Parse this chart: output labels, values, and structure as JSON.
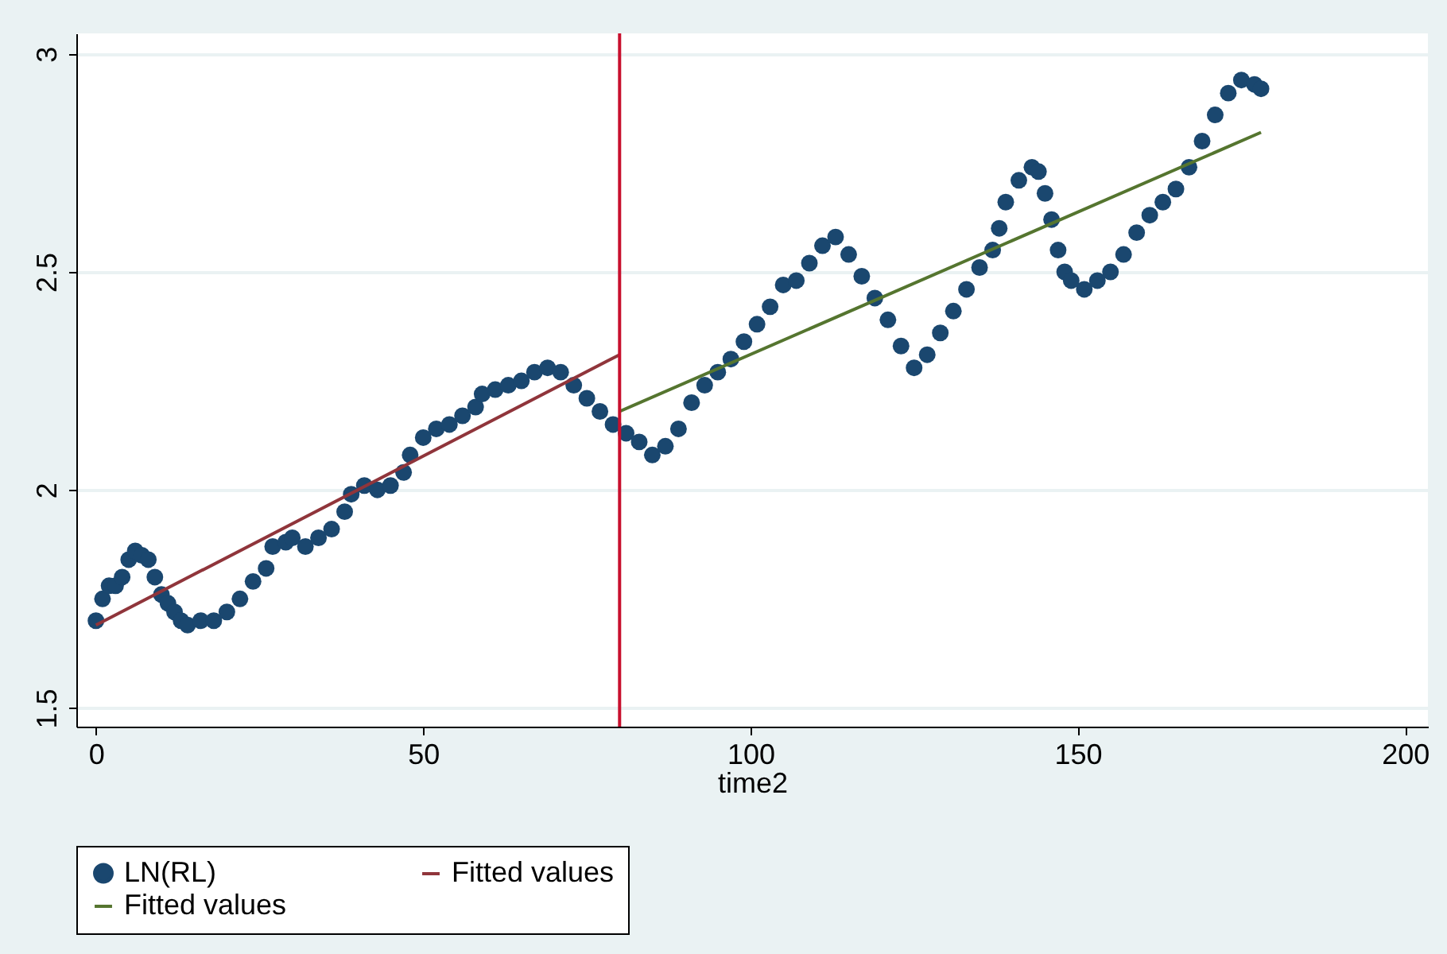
{
  "chart_data": {
    "type": "scatter",
    "xlabel": "time2",
    "xlim": [
      -3,
      203.5
    ],
    "ylim": [
      1.457,
      3.047
    ],
    "xticks": [
      0,
      50,
      100,
      150,
      200
    ],
    "yticks": [
      1.5,
      2,
      2.5,
      3
    ],
    "grid": "y",
    "legend": "bottom",
    "ref_lines": [
      {
        "axis": "x",
        "value": 80,
        "color": "#c8102e",
        "line_style": "solid"
      }
    ],
    "series": [
      {
        "name": "LN(RL)",
        "marker": "circle",
        "color": "#1a476f",
        "x": [
          0,
          1,
          2,
          3,
          4,
          5,
          6,
          7,
          8,
          9,
          10,
          11,
          12,
          13,
          14,
          16,
          18,
          20,
          22,
          24,
          26,
          27,
          29,
          30,
          32,
          34,
          36,
          38,
          39,
          41,
          43,
          45,
          47,
          48,
          50,
          52,
          54,
          56,
          58,
          59,
          61,
          63,
          65,
          67,
          69,
          71,
          73,
          75,
          77,
          79,
          81,
          83,
          85,
          87,
          89,
          91,
          93,
          95,
          97,
          99,
          101,
          103,
          105,
          107,
          109,
          111,
          113,
          115,
          117,
          119,
          121,
          123,
          125,
          127,
          129,
          131,
          133,
          135,
          137,
          138,
          139,
          141,
          143,
          144,
          145,
          146,
          147,
          148,
          149,
          151,
          153,
          155,
          157,
          159,
          161,
          163,
          165,
          167,
          169,
          171,
          173,
          175,
          177,
          178
        ],
        "values": [
          1.7,
          1.75,
          1.78,
          1.78,
          1.8,
          1.84,
          1.86,
          1.85,
          1.84,
          1.8,
          1.76,
          1.74,
          1.72,
          1.7,
          1.69,
          1.7,
          1.7,
          1.72,
          1.75,
          1.79,
          1.82,
          1.87,
          1.88,
          1.89,
          1.87,
          1.89,
          1.91,
          1.95,
          1.99,
          2.01,
          2.0,
          2.01,
          2.04,
          2.08,
          2.12,
          2.14,
          2.15,
          2.17,
          2.19,
          2.22,
          2.23,
          2.24,
          2.25,
          2.27,
          2.28,
          2.27,
          2.24,
          2.21,
          2.18,
          2.15,
          2.13,
          2.11,
          2.08,
          2.1,
          2.14,
          2.2,
          2.24,
          2.27,
          2.3,
          2.34,
          2.38,
          2.42,
          2.47,
          2.48,
          2.52,
          2.56,
          2.58,
          2.54,
          2.49,
          2.44,
          2.39,
          2.33,
          2.28,
          2.31,
          2.36,
          2.41,
          2.46,
          2.51,
          2.55,
          2.6,
          2.66,
          2.71,
          2.74,
          2.73,
          2.68,
          2.62,
          2.55,
          2.5,
          2.48,
          2.46,
          2.48,
          2.5,
          2.54,
          2.59,
          2.63,
          2.66,
          2.69,
          2.74,
          2.8,
          2.86,
          2.91,
          2.94,
          2.93,
          2.92
        ]
      },
      {
        "name": "Fitted values",
        "type": "line",
        "color": "#90353b",
        "x": [
          0,
          80
        ],
        "values": [
          1.69,
          2.31
        ]
      },
      {
        "name": "Fitted values",
        "type": "line",
        "color": "#55752f",
        "x": [
          80,
          178
        ],
        "values": [
          2.18,
          2.82
        ]
      }
    ]
  }
}
